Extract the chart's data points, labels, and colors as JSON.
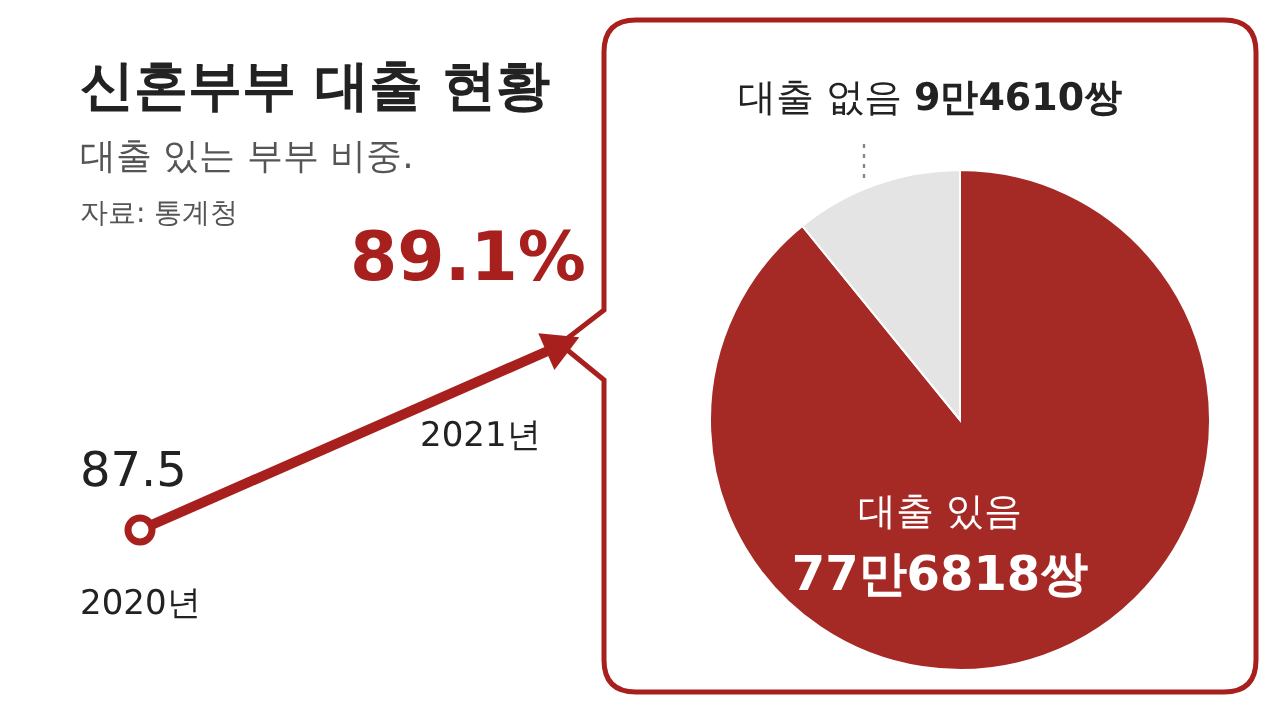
{
  "chart_data": [
    {
      "type": "line",
      "title": "신혼부부 대출 현황",
      "subtitle": "대출 있는 부부 비중.",
      "annotations": [
        "자료: 통계청"
      ],
      "categories": [
        "2020년",
        "2021년"
      ],
      "values": [
        87.5,
        89.1
      ],
      "value_labels": [
        "87.5",
        "89.1%"
      ],
      "color": "#a8201e",
      "marker": "circle"
    },
    {
      "type": "pie",
      "categories": [
        "대출 있음",
        "대출 없음"
      ],
      "values": [
        89.14,
        10.86
      ],
      "annotations": [
        "77만6818쌍",
        "9만4610쌍"
      ],
      "colors": [
        "#a52a26",
        "#e4e4e4"
      ]
    }
  ]
}
